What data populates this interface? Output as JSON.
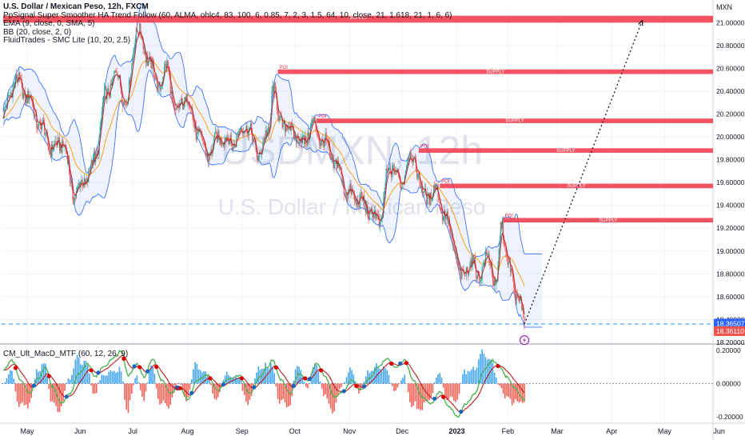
{
  "legend": {
    "title": "U.S. Dollar / Mexican Peso, 12h, FXCM",
    "indicators": [
      "PpSignal Super Smoother HA Trend Follow (60, ALMA, ohlc4, 83, 100, 6, 0.85, 7, 2, 3, 1.5, 64, 10, close, 21, 1.618, 21, 1, 6, 6)",
      "EMA (9, close, 0, SMA, 5)",
      "BB (20, close, 2, 0)",
      "FluidTrades - SMC Lite  (10, 20, 2.5)"
    ]
  },
  "macd_label": "CM_Ult_MacD_MTF (60, 12, 26, 9)",
  "price_unit": "MXN",
  "watermark": {
    "symbol": "USDMXN, 12h",
    "description": "U.S. Dollar / Mexican Peso"
  },
  "colors": {
    "up_candle": "#26a69a",
    "down_candle": "#ef5350",
    "supply_zone": "#f23645",
    "bollinger": "#2962ff",
    "ema": "#ff9800",
    "last_price": "#ef5350",
    "macd_line": "#4caf50",
    "signal_line": "#d32f2f",
    "hist_up": "#2196f3",
    "hist_down": "#f44336"
  },
  "chart_data": [
    {
      "type": "candlestick",
      "title": "U.S. Dollar / Mexican Peso, 12h, FXCM",
      "x_axis": {
        "labels": [
          "May",
          "Jun",
          "Jul",
          "Aug",
          "Sep",
          "Oct",
          "Nov",
          "Dec",
          "2023",
          "Feb",
          "Mar",
          "Apr",
          "May",
          "Jun"
        ],
        "label_positions_idx": [
          0,
          60,
          120,
          182,
          244,
          304,
          366,
          426,
          488,
          546,
          602,
          664,
          724,
          786
        ]
      },
      "y_axis": {
        "range": [
          18.2,
          21.1
        ],
        "ticks": [
          18.2,
          18.4,
          18.6,
          18.8,
          19.0,
          19.2,
          19.4,
          19.6,
          19.8,
          20.0,
          20.2,
          20.4,
          20.6,
          20.8,
          21.0
        ],
        "tick_labels": [
          "18.20000",
          "18.40000",
          "18.60000",
          "18.80000",
          "19.00000",
          "19.20000",
          "19.40000",
          "19.60000",
          "19.80000",
          "20.00000",
          "20.20000",
          "20.40000",
          "20.60000",
          "20.80000",
          "21.00000"
        ]
      },
      "price_anchors": [
        [
          0,
          20.2
        ],
        [
          14,
          20.5
        ],
        [
          28,
          20.35
        ],
        [
          42,
          20.1
        ],
        [
          55,
          19.9
        ],
        [
          68,
          19.95
        ],
        [
          80,
          19.5
        ],
        [
          92,
          19.6
        ],
        [
          104,
          19.8
        ],
        [
          116,
          20.35
        ],
        [
          128,
          20.55
        ],
        [
          140,
          20.3
        ],
        [
          152,
          20.95
        ],
        [
          164,
          20.7
        ],
        [
          176,
          20.45
        ],
        [
          186,
          20.6
        ],
        [
          196,
          20.2
        ],
        [
          208,
          20.35
        ],
        [
          220,
          20.05
        ],
        [
          232,
          19.85
        ],
        [
          246,
          20.0
        ],
        [
          260,
          19.95
        ],
        [
          276,
          20.1
        ],
        [
          290,
          19.85
        ],
        [
          302,
          20.05
        ],
        [
          306,
          20.45
        ],
        [
          314,
          20.15
        ],
        [
          328,
          20.05
        ],
        [
          340,
          19.95
        ],
        [
          352,
          20.1
        ],
        [
          364,
          19.95
        ],
        [
          378,
          19.75
        ],
        [
          392,
          19.5
        ],
        [
          404,
          19.45
        ],
        [
          416,
          19.35
        ],
        [
          428,
          19.25
        ],
        [
          436,
          19.65
        ],
        [
          444,
          19.75
        ],
        [
          452,
          19.55
        ],
        [
          460,
          19.85
        ],
        [
          468,
          19.75
        ],
        [
          480,
          19.45
        ],
        [
          490,
          19.55
        ],
        [
          500,
          19.35
        ],
        [
          512,
          19.05
        ],
        [
          520,
          18.75
        ],
        [
          530,
          18.9
        ],
        [
          540,
          18.8
        ],
        [
          552,
          18.95
        ],
        [
          560,
          18.65
        ],
        [
          566,
          19.25
        ],
        [
          574,
          18.85
        ],
        [
          584,
          18.6
        ],
        [
          590,
          18.48
        ],
        [
          592,
          18.36
        ]
      ],
      "candle_count": 593,
      "last_price": 18.36507,
      "last_price_label": "18.36507",
      "secondary_price": 18.3611,
      "secondary_price_label": "18.36110",
      "projection": {
        "from": [
          592,
          18.36
        ],
        "to": [
          726,
          21.02
        ]
      },
      "signal_marker_idx": 592,
      "signal_marker_price": 18.22,
      "supply_zones": [
        {
          "label": "SUPPLY",
          "start_idx": 0,
          "top": 21.06,
          "bottom": 21.0
        },
        {
          "label": "SUPPLY",
          "start_idx": 312,
          "top": 20.59,
          "bottom": 20.55
        },
        {
          "label": "SUPPLY",
          "start_idx": 356,
          "top": 20.16,
          "bottom": 20.12
        },
        {
          "label": "SUPPLY",
          "start_idx": 472,
          "top": 19.9,
          "bottom": 19.86
        },
        {
          "label": "SUPPLY",
          "start_idx": 496,
          "top": 19.59,
          "bottom": 19.55
        },
        {
          "label": "SUPPLY",
          "start_idx": 568,
          "top": 19.29,
          "bottom": 19.25
        }
      ],
      "zone_marker_label": "POI"
    },
    {
      "type": "macd",
      "title": "CM_Ult_MacD_MTF (60, 12, 26, 9)",
      "y_axis": {
        "range": [
          -0.23,
          0.23
        ],
        "ticks": [
          0.2,
          0.0,
          -0.2
        ],
        "tick_labels": [
          "0.20000",
          "0.00000",
          "-0.20000"
        ]
      },
      "macd_anchors": [
        [
          0,
          0.08
        ],
        [
          10,
          0.14
        ],
        [
          20,
          0.02
        ],
        [
          30,
          -0.06
        ],
        [
          40,
          0.03
        ],
        [
          48,
          0.1
        ],
        [
          56,
          -0.02
        ],
        [
          66,
          -0.12
        ],
        [
          76,
          -0.06
        ],
        [
          86,
          0.06
        ],
        [
          96,
          0.12
        ],
        [
          104,
          0.04
        ],
        [
          114,
          0.1
        ],
        [
          126,
          0.16
        ],
        [
          134,
          0.2
        ],
        [
          142,
          0.05
        ],
        [
          152,
          0.12
        ],
        [
          160,
          0.04
        ],
        [
          170,
          0.15
        ],
        [
          180,
          0.02
        ],
        [
          190,
          -0.06
        ],
        [
          200,
          -0.02
        ],
        [
          210,
          -0.1
        ],
        [
          220,
          0.02
        ],
        [
          232,
          0.05
        ],
        [
          244,
          -0.04
        ],
        [
          256,
          0.03
        ],
        [
          268,
          0.05
        ],
        [
          280,
          -0.06
        ],
        [
          292,
          0.04
        ],
        [
          300,
          0.1
        ],
        [
          306,
          0.14
        ],
        [
          316,
          0.02
        ],
        [
          326,
          -0.06
        ],
        [
          336,
          0.06
        ],
        [
          346,
          0.02
        ],
        [
          356,
          0.12
        ],
        [
          366,
          0.04
        ],
        [
          376,
          -0.08
        ],
        [
          386,
          -0.05
        ],
        [
          396,
          0.02
        ],
        [
          406,
          -0.04
        ],
        [
          416,
          0.03
        ],
        [
          426,
          0.1
        ],
        [
          436,
          0.15
        ],
        [
          446,
          0.1
        ],
        [
          456,
          0.14
        ],
        [
          466,
          0.02
        ],
        [
          476,
          -0.08
        ],
        [
          486,
          -0.12
        ],
        [
          496,
          -0.05
        ],
        [
          506,
          -0.14
        ],
        [
          516,
          -0.2
        ],
        [
          526,
          -0.12
        ],
        [
          536,
          -0.06
        ],
        [
          546,
          0.08
        ],
        [
          556,
          0.14
        ],
        [
          564,
          0.1
        ],
        [
          572,
          0.04
        ],
        [
          580,
          -0.02
        ],
        [
          592,
          -0.1
        ]
      ]
    }
  ]
}
